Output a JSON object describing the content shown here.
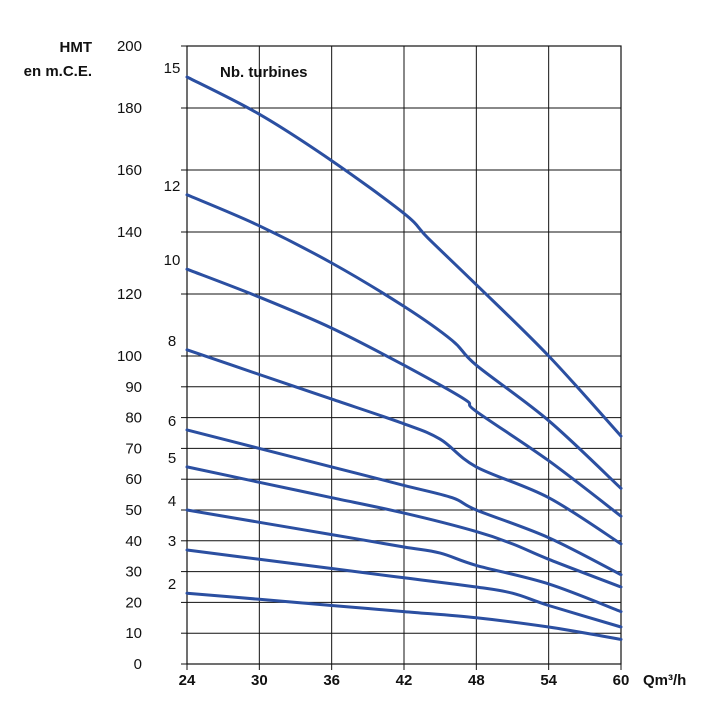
{
  "chart_data": {
    "type": "line",
    "ylabel_line1": "HMT",
    "ylabel_line2": "en m.C.E.",
    "xlabel": "Qm³/h",
    "legend_title": "Nb. turbines",
    "x_ticks": [
      24,
      30,
      36,
      42,
      48,
      54,
      60
    ],
    "xlim": [
      24,
      60
    ],
    "ylim": [
      0,
      200
    ],
    "y_ticks": [
      0,
      10,
      20,
      30,
      40,
      50,
      60,
      70,
      80,
      90,
      100,
      120,
      140,
      160,
      180,
      200
    ],
    "grid": true,
    "series": [
      {
        "name": "15",
        "x": [
          24,
          30,
          36,
          42,
          44,
          48,
          54,
          60
        ],
        "y": [
          190,
          178,
          163,
          146,
          138,
          123,
          100,
          74
        ]
      },
      {
        "name": "12",
        "x": [
          24,
          30,
          36,
          42,
          46,
          48,
          54,
          60
        ],
        "y": [
          152,
          142,
          130,
          116,
          105,
          97,
          79,
          57
        ]
      },
      {
        "name": "10",
        "x": [
          24,
          30,
          36,
          42,
          47,
          48,
          54,
          60
        ],
        "y": [
          128,
          119,
          109,
          97,
          86,
          82,
          66,
          48
        ]
      },
      {
        "name": "8",
        "x": [
          24,
          30,
          36,
          42,
          45,
          48,
          54,
          60
        ],
        "y": [
          102,
          94,
          86,
          78,
          73,
          64,
          54,
          39
        ]
      },
      {
        "name": "6",
        "x": [
          24,
          30,
          36,
          42,
          46,
          48,
          54,
          60
        ],
        "y": [
          76,
          70,
          64,
          58,
          54,
          50,
          41,
          29
        ]
      },
      {
        "name": "5",
        "x": [
          24,
          30,
          36,
          42,
          48,
          51,
          54,
          60
        ],
        "y": [
          64,
          59,
          54,
          49,
          43,
          39,
          34,
          25
        ]
      },
      {
        "name": "4",
        "x": [
          24,
          30,
          36,
          42,
          45,
          48,
          54,
          60
        ],
        "y": [
          50,
          46,
          42,
          38,
          36,
          32,
          26,
          17
        ]
      },
      {
        "name": "3",
        "x": [
          24,
          30,
          36,
          42,
          48,
          51,
          54,
          60
        ],
        "y": [
          37,
          34,
          31,
          28,
          25,
          23,
          19,
          12
        ]
      },
      {
        "name": "2",
        "x": [
          24,
          30,
          36,
          42,
          48,
          54,
          60
        ],
        "y": [
          23,
          21,
          19,
          17,
          15,
          12,
          8
        ]
      }
    ],
    "line_color": "#2b4fa1"
  }
}
